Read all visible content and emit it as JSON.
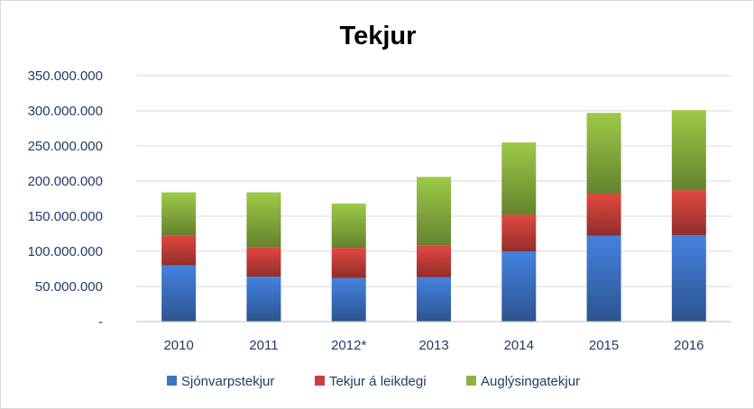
{
  "chart_data": {
    "type": "bar",
    "stacked": true,
    "title": "Tekjur",
    "xlabel": "",
    "ylabel": "",
    "categories": [
      "2010",
      "2011",
      "2012*",
      "2013",
      "2014",
      "2015",
      "2016"
    ],
    "series": [
      {
        "name": "Sjónvarpstekjur",
        "color": "#3d74c7",
        "values": [
          80000000,
          64000000,
          62000000,
          63000000,
          100000000,
          122000000,
          123000000
        ]
      },
      {
        "name": "Tekjur á leikdegi",
        "color": "#c9403a",
        "values": [
          43000000,
          42000000,
          43000000,
          45000000,
          52000000,
          60000000,
          64000000
        ]
      },
      {
        "name": "Auglýsingatekjur",
        "color": "#8cb440",
        "values": [
          61000000,
          78000000,
          63000000,
          98000000,
          103000000,
          115000000,
          114000000
        ]
      }
    ],
    "ylim": [
      0,
      350000000
    ],
    "yticks": [
      0,
      50000000,
      100000000,
      150000000,
      200000000,
      250000000,
      300000000,
      350000000
    ],
    "ytick_labels": [
      "-",
      "50.000.000",
      "100.000.000",
      "150.000.000",
      "200.000.000",
      "250.000.000",
      "300.000.000",
      "350.000.000"
    ],
    "grid": true,
    "legend_position": "bottom"
  }
}
